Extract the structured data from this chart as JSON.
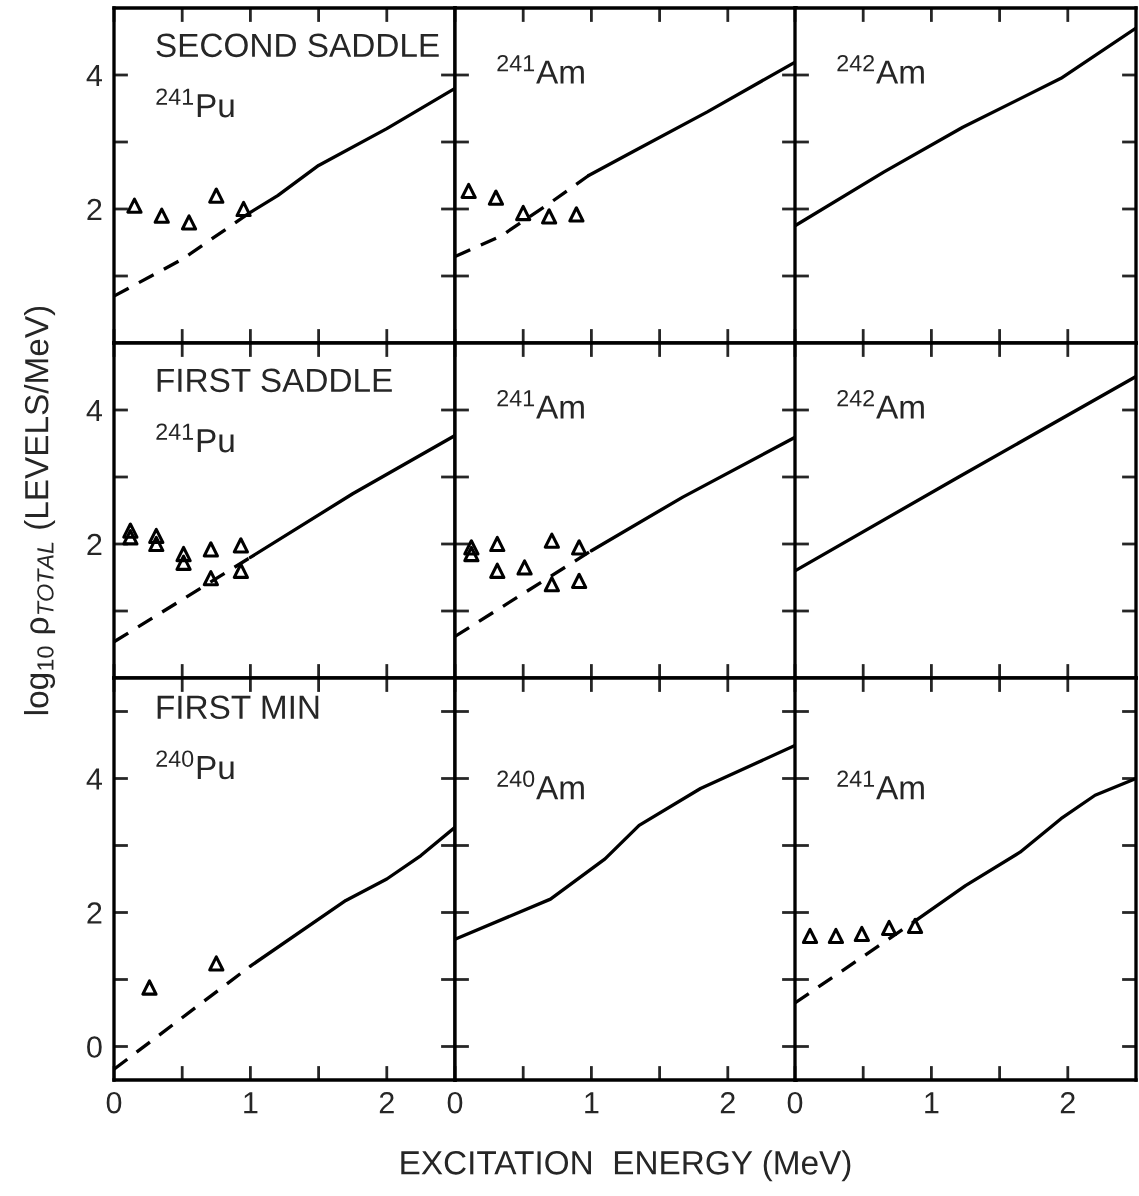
{
  "chart_data": [
    {
      "type": "line",
      "xlim": [
        0,
        2.5
      ],
      "ylim": [
        0,
        5
      ],
      "xticks": [
        {
          "value": 0,
          "label": null
        },
        {
          "value": 0.5,
          "label": null
        },
        {
          "value": 1,
          "label": null
        },
        {
          "value": 1.5,
          "label": null
        },
        {
          "value": 2,
          "label": null
        }
      ],
      "yticks": [
        {
          "value": 1,
          "label": null
        },
        2,
        {
          "value": 3,
          "label": null
        },
        4
      ],
      "tick_labels": "y",
      "annotations": [
        "SECOND SADDLE",
        "$^{241}$Pu"
      ],
      "series": [
        {
          "type": "line",
          "line_style": "solid",
          "color": "#000000",
          "x": [
            1.0,
            1.2,
            1.5,
            2.0,
            2.5
          ],
          "values": [
            1.95,
            2.2,
            2.65,
            3.2,
            3.8
          ]
        },
        {
          "type": "line",
          "line_style": "dashed",
          "color": "#000000",
          "x": [
            0,
            0.5,
            1.0
          ],
          "values": [
            0.7,
            1.25,
            1.95
          ]
        },
        {
          "type": "scatter",
          "marker": "triangle",
          "color": "#000000",
          "x": [
            0.15,
            0.35,
            0.55,
            0.75,
            0.95
          ],
          "values": [
            2.05,
            1.9,
            1.8,
            2.2,
            2.0
          ]
        }
      ]
    },
    {
      "type": "line",
      "xlim": [
        0,
        2.5
      ],
      "ylim": [
        0,
        5
      ],
      "xticks": [
        {
          "value": 0,
          "label": null
        },
        {
          "value": 0.5,
          "label": null
        },
        {
          "value": 1,
          "label": null
        },
        {
          "value": 1.5,
          "label": null
        },
        {
          "value": 2,
          "label": null
        }
      ],
      "yticks": [
        {
          "value": 1,
          "label": null
        },
        {
          "value": 2,
          "label": null
        },
        {
          "value": 3,
          "label": null
        },
        {
          "value": 4,
          "label": null
        }
      ],
      "tick_labels": false,
      "annotations": [
        "$^{241}$Am"
      ],
      "series": [
        {
          "type": "line",
          "line_style": "solid",
          "color": "#000000",
          "x": [
            0.98,
            1.3,
            1.85,
            2.5
          ],
          "values": [
            2.5,
            2.85,
            3.45,
            4.2
          ]
        },
        {
          "type": "line",
          "line_style": "dashed",
          "color": "#000000",
          "x": [
            0,
            0.34,
            0.69,
            0.98
          ],
          "values": [
            1.29,
            1.6,
            2.08,
            2.5
          ]
        },
        {
          "type": "scatter",
          "marker": "triangle",
          "color": "#000000",
          "x": [
            0.1,
            0.3,
            0.5,
            0.69,
            0.89
          ],
          "values": [
            2.27,
            2.17,
            1.94,
            1.89,
            1.92
          ]
        }
      ]
    },
    {
      "type": "line",
      "xlim": [
        0,
        2.5
      ],
      "ylim": [
        0,
        5
      ],
      "xticks": [
        {
          "value": 0,
          "label": null
        },
        {
          "value": 0.5,
          "label": null
        },
        {
          "value": 1,
          "label": null
        },
        {
          "value": 1.5,
          "label": null
        },
        {
          "value": 2,
          "label": null
        }
      ],
      "yticks": [
        {
          "value": 1,
          "label": null
        },
        {
          "value": 2,
          "label": null
        },
        {
          "value": 3,
          "label": null
        },
        {
          "value": 4,
          "label": null
        }
      ],
      "tick_labels": false,
      "annotations": [
        "$^{242}$Am"
      ],
      "series": [
        {
          "type": "line",
          "line_style": "solid",
          "color": "#000000",
          "x": [
            0,
            0.65,
            1.23,
            1.95,
            2.5
          ],
          "values": [
            1.75,
            2.55,
            3.22,
            3.95,
            4.7
          ]
        }
      ]
    },
    {
      "type": "line",
      "xlim": [
        0,
        2.5
      ],
      "ylim": [
        0,
        5
      ],
      "xticks": [
        {
          "value": 0,
          "label": null
        },
        {
          "value": 0.5,
          "label": null
        },
        {
          "value": 1,
          "label": null
        },
        {
          "value": 1.5,
          "label": null
        },
        {
          "value": 2,
          "label": null
        }
      ],
      "yticks": [
        {
          "value": 1,
          "label": null
        },
        2,
        {
          "value": 3,
          "label": null
        },
        4
      ],
      "tick_labels": "y",
      "ylabel": "log$_{10}$ ρ$_{TOTAL}$ (LEVELS/MeV)",
      "annotations": [
        "FIRST SADDLE",
        "$^{241}$Pu"
      ],
      "series": [
        {
          "type": "line",
          "line_style": "solid",
          "color": "#000000",
          "x": [
            1.0,
            1.75,
            2.5
          ],
          "values": [
            1.8,
            2.75,
            3.62
          ]
        },
        {
          "type": "line",
          "line_style": "dashed",
          "color": "#000000",
          "x": [
            0,
            1.0
          ],
          "values": [
            0.54,
            1.8
          ]
        },
        {
          "type": "scatter",
          "marker": "triangle",
          "color": "#000000",
          "x": [
            0.12,
            0.31,
            0.51,
            0.71,
            0.93
          ],
          "values": [
            2.2,
            2.12,
            1.85,
            1.92,
            1.98
          ]
        },
        {
          "type": "scatter",
          "marker": "triangle",
          "color": "#000000",
          "x": [
            0.12,
            0.31,
            0.51,
            0.71,
            0.93
          ],
          "values": [
            2.1,
            2.0,
            1.72,
            1.49,
            1.6
          ]
        }
      ]
    },
    {
      "type": "line",
      "xlim": [
        0,
        2.5
      ],
      "ylim": [
        0,
        5
      ],
      "xticks": [
        {
          "value": 0,
          "label": null
        },
        {
          "value": 0.5,
          "label": null
        },
        {
          "value": 1,
          "label": null
        },
        {
          "value": 1.5,
          "label": null
        },
        {
          "value": 2,
          "label": null
        }
      ],
      "yticks": [
        {
          "value": 1,
          "label": null
        },
        {
          "value": 2,
          "label": null
        },
        {
          "value": 3,
          "label": null
        },
        {
          "value": 4,
          "label": null
        }
      ],
      "tick_labels": false,
      "annotations": [
        "$^{241}$Am"
      ],
      "series": [
        {
          "type": "line",
          "line_style": "solid",
          "color": "#000000",
          "x": [
            1.0,
            1.67,
            2.5
          ],
          "values": [
            1.9,
            2.7,
            3.6
          ]
        },
        {
          "type": "line",
          "line_style": "dashed",
          "color": "#000000",
          "x": [
            0,
            1.0
          ],
          "values": [
            0.62,
            1.9
          ]
        },
        {
          "type": "scatter",
          "marker": "triangle",
          "color": "#000000",
          "x": [
            0.12,
            0.31
          ],
          "values": [
            1.85,
            1.6
          ]
        },
        {
          "type": "scatter",
          "marker": "triangle",
          "color": "#000000",
          "x": [
            0.12,
            0.31,
            0.51,
            0.71,
            0.71,
            0.91,
            0.91
          ],
          "values": [
            1.95,
            2.0,
            1.65,
            2.05,
            1.4,
            1.95,
            1.45
          ]
        }
      ]
    },
    {
      "type": "line",
      "xlim": [
        0,
        2.5
      ],
      "ylim": [
        0,
        5
      ],
      "xticks": [
        {
          "value": 0,
          "label": null
        },
        {
          "value": 0.5,
          "label": null
        },
        {
          "value": 1,
          "label": null
        },
        {
          "value": 1.5,
          "label": null
        },
        {
          "value": 2,
          "label": null
        }
      ],
      "yticks": [
        {
          "value": 1,
          "label": null
        },
        {
          "value": 2,
          "label": null
        },
        {
          "value": 3,
          "label": null
        },
        {
          "value": 4,
          "label": null
        }
      ],
      "tick_labels": false,
      "annotations": [
        "$^{242}$Am"
      ],
      "series": [
        {
          "type": "line",
          "line_style": "solid",
          "color": "#000000",
          "x": [
            0,
            1.2,
            2.5
          ],
          "values": [
            1.6,
            3.0,
            4.5
          ]
        }
      ]
    },
    {
      "type": "line",
      "xlim": [
        0,
        2.5
      ],
      "ylim": [
        -0.5,
        5.5
      ],
      "xticks": [
        0,
        {
          "value": 0.5,
          "label": null
        },
        1,
        {
          "value": 1.5,
          "label": null
        },
        2
      ],
      "yticks": [
        0,
        {
          "value": 1,
          "label": null
        },
        2,
        {
          "value": 3,
          "label": null
        },
        4,
        {
          "value": 5,
          "label": null
        }
      ],
      "annotations": [
        "FIRST MIN",
        "$^{240}$Pu"
      ],
      "series": [
        {
          "type": "line",
          "line_style": "solid",
          "color": "#000000",
          "x": [
            1.0,
            1.7,
            2.0,
            2.25,
            2.5
          ],
          "values": [
            1.2,
            2.18,
            2.5,
            2.85,
            3.27
          ]
        },
        {
          "type": "line",
          "line_style": "dashed",
          "color": "#000000",
          "x": [
            0,
            1.0
          ],
          "values": [
            -0.34,
            1.2
          ]
        },
        {
          "type": "scatter",
          "marker": "triangle",
          "color": "#000000",
          "x": [
            0.26,
            0.75
          ],
          "values": [
            0.88,
            1.24
          ]
        }
      ]
    },
    {
      "type": "line",
      "xlim": [
        0,
        2.5
      ],
      "ylim": [
        -0.5,
        5.5
      ],
      "xticks": [
        0,
        {
          "value": 0.5,
          "label": null
        },
        1,
        {
          "value": 1.5,
          "label": null
        },
        2
      ],
      "yticks": [
        {
          "value": 0,
          "label": null
        },
        {
          "value": 1,
          "label": null
        },
        {
          "value": 2,
          "label": null
        },
        {
          "value": 3,
          "label": null
        },
        {
          "value": 4,
          "label": null
        },
        {
          "value": 5,
          "label": null
        }
      ],
      "tick_labels": "x",
      "xlabel": "EXCITATION  ENERGY (MeV)",
      "annotations": [
        "$^{240}$Am"
      ],
      "series": [
        {
          "type": "line",
          "line_style": "solid",
          "color": "#000000",
          "x": [
            0,
            0.7,
            1.1,
            1.35,
            1.8,
            2.5
          ],
          "values": [
            1.6,
            2.2,
            2.8,
            3.3,
            3.85,
            4.5
          ]
        }
      ]
    },
    {
      "type": "line",
      "xlim": [
        0,
        2.5
      ],
      "ylim": [
        -0.5,
        5.5
      ],
      "xticks": [
        0,
        {
          "value": 0.5,
          "label": null
        },
        1,
        {
          "value": 1.5,
          "label": null
        },
        2
      ],
      "yticks": [
        {
          "value": 0,
          "label": null
        },
        {
          "value": 1,
          "label": null
        },
        {
          "value": 2,
          "label": null
        },
        {
          "value": 3,
          "label": null
        },
        {
          "value": 4,
          "label": null
        },
        {
          "value": 5,
          "label": null
        }
      ],
      "tick_labels": "x",
      "annotations": [
        "$^{241}$Am"
      ],
      "series": [
        {
          "type": "line",
          "line_style": "solid",
          "color": "#000000",
          "x": [
            0.9,
            1.25,
            1.65,
            1.95,
            2.2,
            2.5
          ],
          "values": [
            1.9,
            2.4,
            2.9,
            3.4,
            3.75,
            4.0
          ]
        },
        {
          "type": "line",
          "line_style": "dashed",
          "color": "#000000",
          "x": [
            0,
            0.9
          ],
          "values": [
            0.65,
            1.9
          ]
        },
        {
          "type": "scatter",
          "marker": "triangle",
          "color": "#000000",
          "x": [
            0.11,
            0.3,
            0.49,
            0.69,
            0.88
          ],
          "values": [
            1.65,
            1.65,
            1.68,
            1.77,
            1.8
          ]
        }
      ]
    }
  ]
}
